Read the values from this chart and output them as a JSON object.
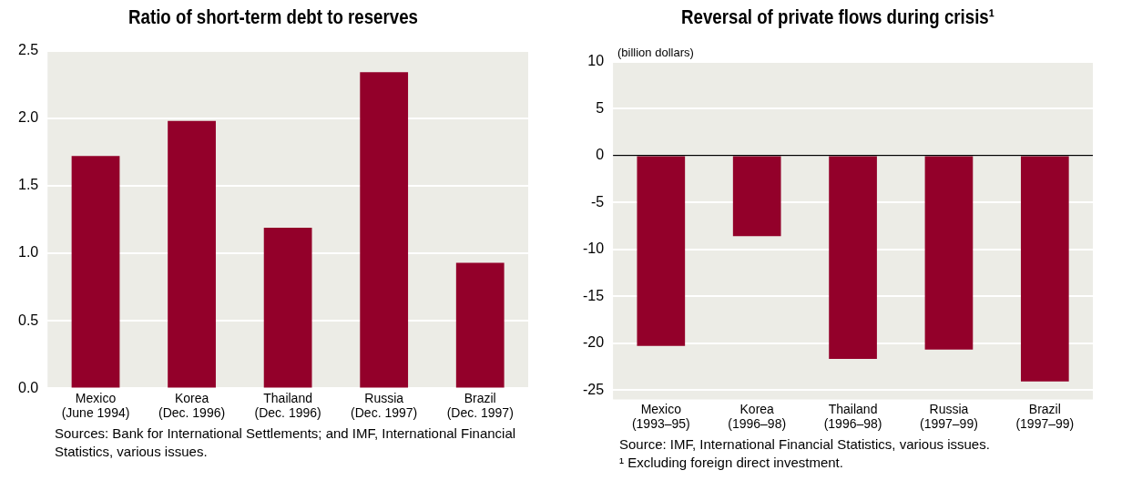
{
  "chart_data": [
    {
      "type": "bar",
      "title": "Ratio of short-term debt to reserves",
      "categories": [
        "Mexico\n(June 1994)",
        "Korea\n(Dec. 1996)",
        "Thailand\n(Dec. 1996)",
        "Russia\n(Dec. 1997)",
        "Brazil\n(Dec. 1997)"
      ],
      "values": [
        1.72,
        1.98,
        1.19,
        2.34,
        0.93
      ],
      "color": "#93002a",
      "ylim": [
        0,
        2.5
      ],
      "yticks": [
        {
          "value": 0,
          "label": "0.0"
        },
        {
          "value": 0.5,
          "label": "0.5"
        },
        {
          "value": 1,
          "label": "1.0"
        },
        {
          "value": 1.5,
          "label": "1.5"
        },
        {
          "value": 2,
          "label": "2.0"
        },
        {
          "value": 2.5,
          "label": "2.5"
        }
      ],
      "grid": "y",
      "legend": false,
      "annotations": [
        "Sources: Bank for International Settlements; and IMF, International Financial Statistics, various issues."
      ]
    },
    {
      "type": "bar",
      "title": "Reversal of private flows during crisis¹",
      "ylabel": "(billion dollars)",
      "categories": [
        "Mexico\n(1993–95)",
        "Korea\n(1996–98)",
        "Thailand\n(1996–98)",
        "Russia\n(1997–99)",
        "Brazil\n(1997–99)"
      ],
      "values": [
        -20.3,
        -8.6,
        -21.7,
        -20.7,
        -24.1
      ],
      "color": "#93002a",
      "ylim": [
        -26,
        10
      ],
      "yticks": [
        -25,
        -20,
        -15,
        -10,
        -5,
        0,
        5,
        10
      ],
      "grid": "y",
      "legend": false,
      "ref_lines": [
        {
          "axis": "y",
          "value": 0,
          "color": "#000000"
        }
      ],
      "annotations": [
        "Source: IMF, International Financial Statistics, various issues.",
        "¹ Excluding foreign direct investment."
      ]
    }
  ]
}
